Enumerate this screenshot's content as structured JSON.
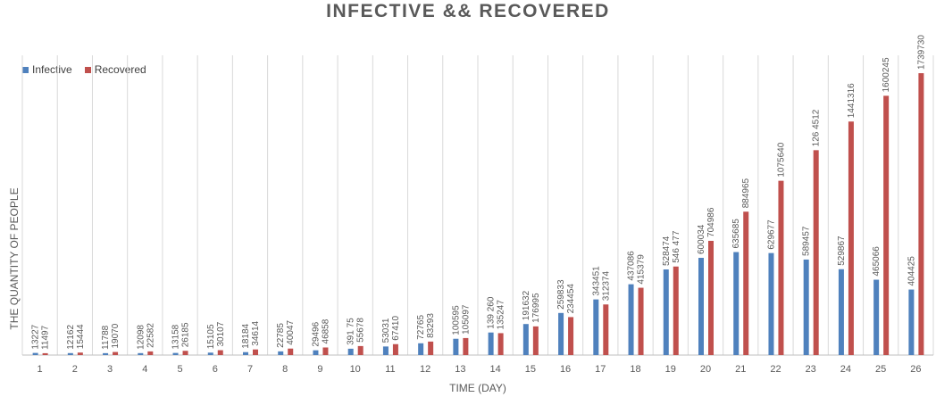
{
  "colors": {
    "infective": "#4f81bd",
    "recovered": "#c0504d",
    "grid": "#d9d9d9",
    "axis": "#bfbfbf",
    "text": "#595959"
  },
  "chart_data": {
    "type": "bar",
    "title": "INFECTIVE && RECOVERED",
    "xlabel": "TIME (DAY)",
    "ylabel": "THE QUANTITY OF PEOPLE",
    "legend_position": "top-left",
    "grid": "vertical category separators",
    "ylim": [
      0,
      1850000
    ],
    "categories": [
      "1",
      "2",
      "3",
      "4",
      "5",
      "6",
      "7",
      "8",
      "9",
      "10",
      "11",
      "12",
      "13",
      "14",
      "15",
      "16",
      "17",
      "18",
      "19",
      "20",
      "21",
      "22",
      "23",
      "24",
      "25",
      "26"
    ],
    "series": [
      {
        "name": "Infective",
        "values": [
          13227,
          12162,
          11788,
          12098,
          13158,
          15105,
          18184,
          22785,
          29496,
          39175,
          53031,
          72765,
          100595,
          139260,
          191632,
          259833,
          343451,
          437086,
          528474,
          600034,
          635685,
          629677,
          589457,
          529867,
          465066,
          404425
        ],
        "labels": [
          "13227",
          "12162",
          "11788",
          "12098",
          "13158",
          "15105",
          "18184",
          "22785",
          "29496",
          "391 75",
          "53031",
          "72765",
          "100595",
          "139 260",
          "191632",
          "259833",
          "343451",
          "437086",
          "528474",
          "600034",
          "635685",
          "629677",
          "589457",
          "529867",
          "465066",
          "404425"
        ]
      },
      {
        "name": "Recovered",
        "values": [
          11497,
          15444,
          19070,
          22582,
          26185,
          30107,
          34614,
          40047,
          46858,
          55678,
          67410,
          83293,
          105097,
          135247,
          176995,
          234454,
          312374,
          415379,
          546477,
          704986,
          884965,
          1075640,
          1264512,
          1441316,
          1600245,
          1739730
        ],
        "labels": [
          "11497",
          "15444",
          "19070",
          "22582",
          "26185",
          "30107",
          "34614",
          "40047",
          "46858",
          "55678",
          "67410",
          "83293",
          "105097",
          "135247",
          "176995",
          "234454",
          "312374",
          "415379",
          "546 477",
          "704986",
          "884965",
          "1075640",
          "126 4512",
          "1441316",
          "1600245",
          "1739730"
        ]
      }
    ]
  }
}
